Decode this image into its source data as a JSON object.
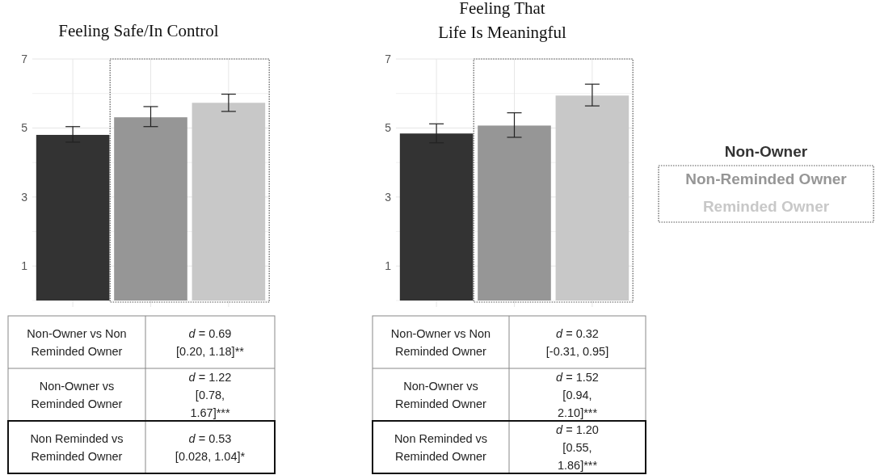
{
  "chart_data": [
    {
      "type": "bar",
      "title": "Feeling Safe/In Control",
      "categories": [
        null,
        null,
        null
      ],
      "ylim": [
        0,
        7
      ],
      "yticks": [
        1,
        3,
        5,
        7
      ],
      "grid": true,
      "legend": false,
      "tick_labels": "y",
      "series": [
        {
          "color": "#333333",
          "values": [
            4.8,
            null,
            null
          ],
          "errors": [
            [
              4.59,
              5.04
            ],
            null,
            null
          ]
        },
        {
          "color": "#969696",
          "values": [
            null,
            5.31,
            null
          ],
          "errors": [
            null,
            [
              5.04,
              5.62
            ],
            null
          ]
        },
        {
          "color": "#c8c8c8",
          "values": [
            null,
            null,
            5.73
          ],
          "errors": [
            null,
            null,
            [
              5.48,
              5.98
            ]
          ]
        }
      ],
      "annotations": [
        "Non-Owner vs Non Reminded Owner",
        "d = 0.69 [0.20, 1.18]**",
        "Non-Owner vs Reminded Owner",
        "d = 1.22 [0.78, 1.67]***",
        "Non Reminded vs Reminded Owner",
        "d = 0.53 [0.028, 1.04]*"
      ]
    },
    {
      "type": "bar",
      "title": "Feeling That\nLife Is Meaningful",
      "categories": [
        null,
        null,
        null
      ],
      "ylim": [
        0,
        7
      ],
      "yticks": [
        1,
        3,
        5,
        7
      ],
      "grid": true,
      "legend": "right",
      "tick_labels": "y",
      "series": [
        {
          "name": "Non-Owner",
          "color": "#333333",
          "values": [
            4.84,
            null,
            null
          ],
          "errors": [
            [
              4.57,
              5.12
            ],
            null,
            null
          ]
        },
        {
          "name": "Non-Reminded Owner",
          "color": "#969696",
          "values": [
            null,
            5.07,
            null
          ],
          "errors": [
            null,
            [
              4.73,
              5.44
            ],
            null
          ]
        },
        {
          "name": "Reminded Owner",
          "color": "#c8c8c8",
          "values": [
            null,
            null,
            5.94
          ],
          "errors": [
            null,
            null,
            [
              5.64,
              6.27
            ]
          ]
        }
      ],
      "annotations": [
        "Non-Owner vs Non Reminded Owner",
        "d = 0.32 [-0.31, 0.95]",
        "Non-Owner vs Reminded Owner",
        "d = 1.52 [0.94, 2.10]***",
        "Non Reminded vs Reminded Owner",
        "d = 1.20 [0.55, 1.86]***"
      ]
    }
  ]
}
